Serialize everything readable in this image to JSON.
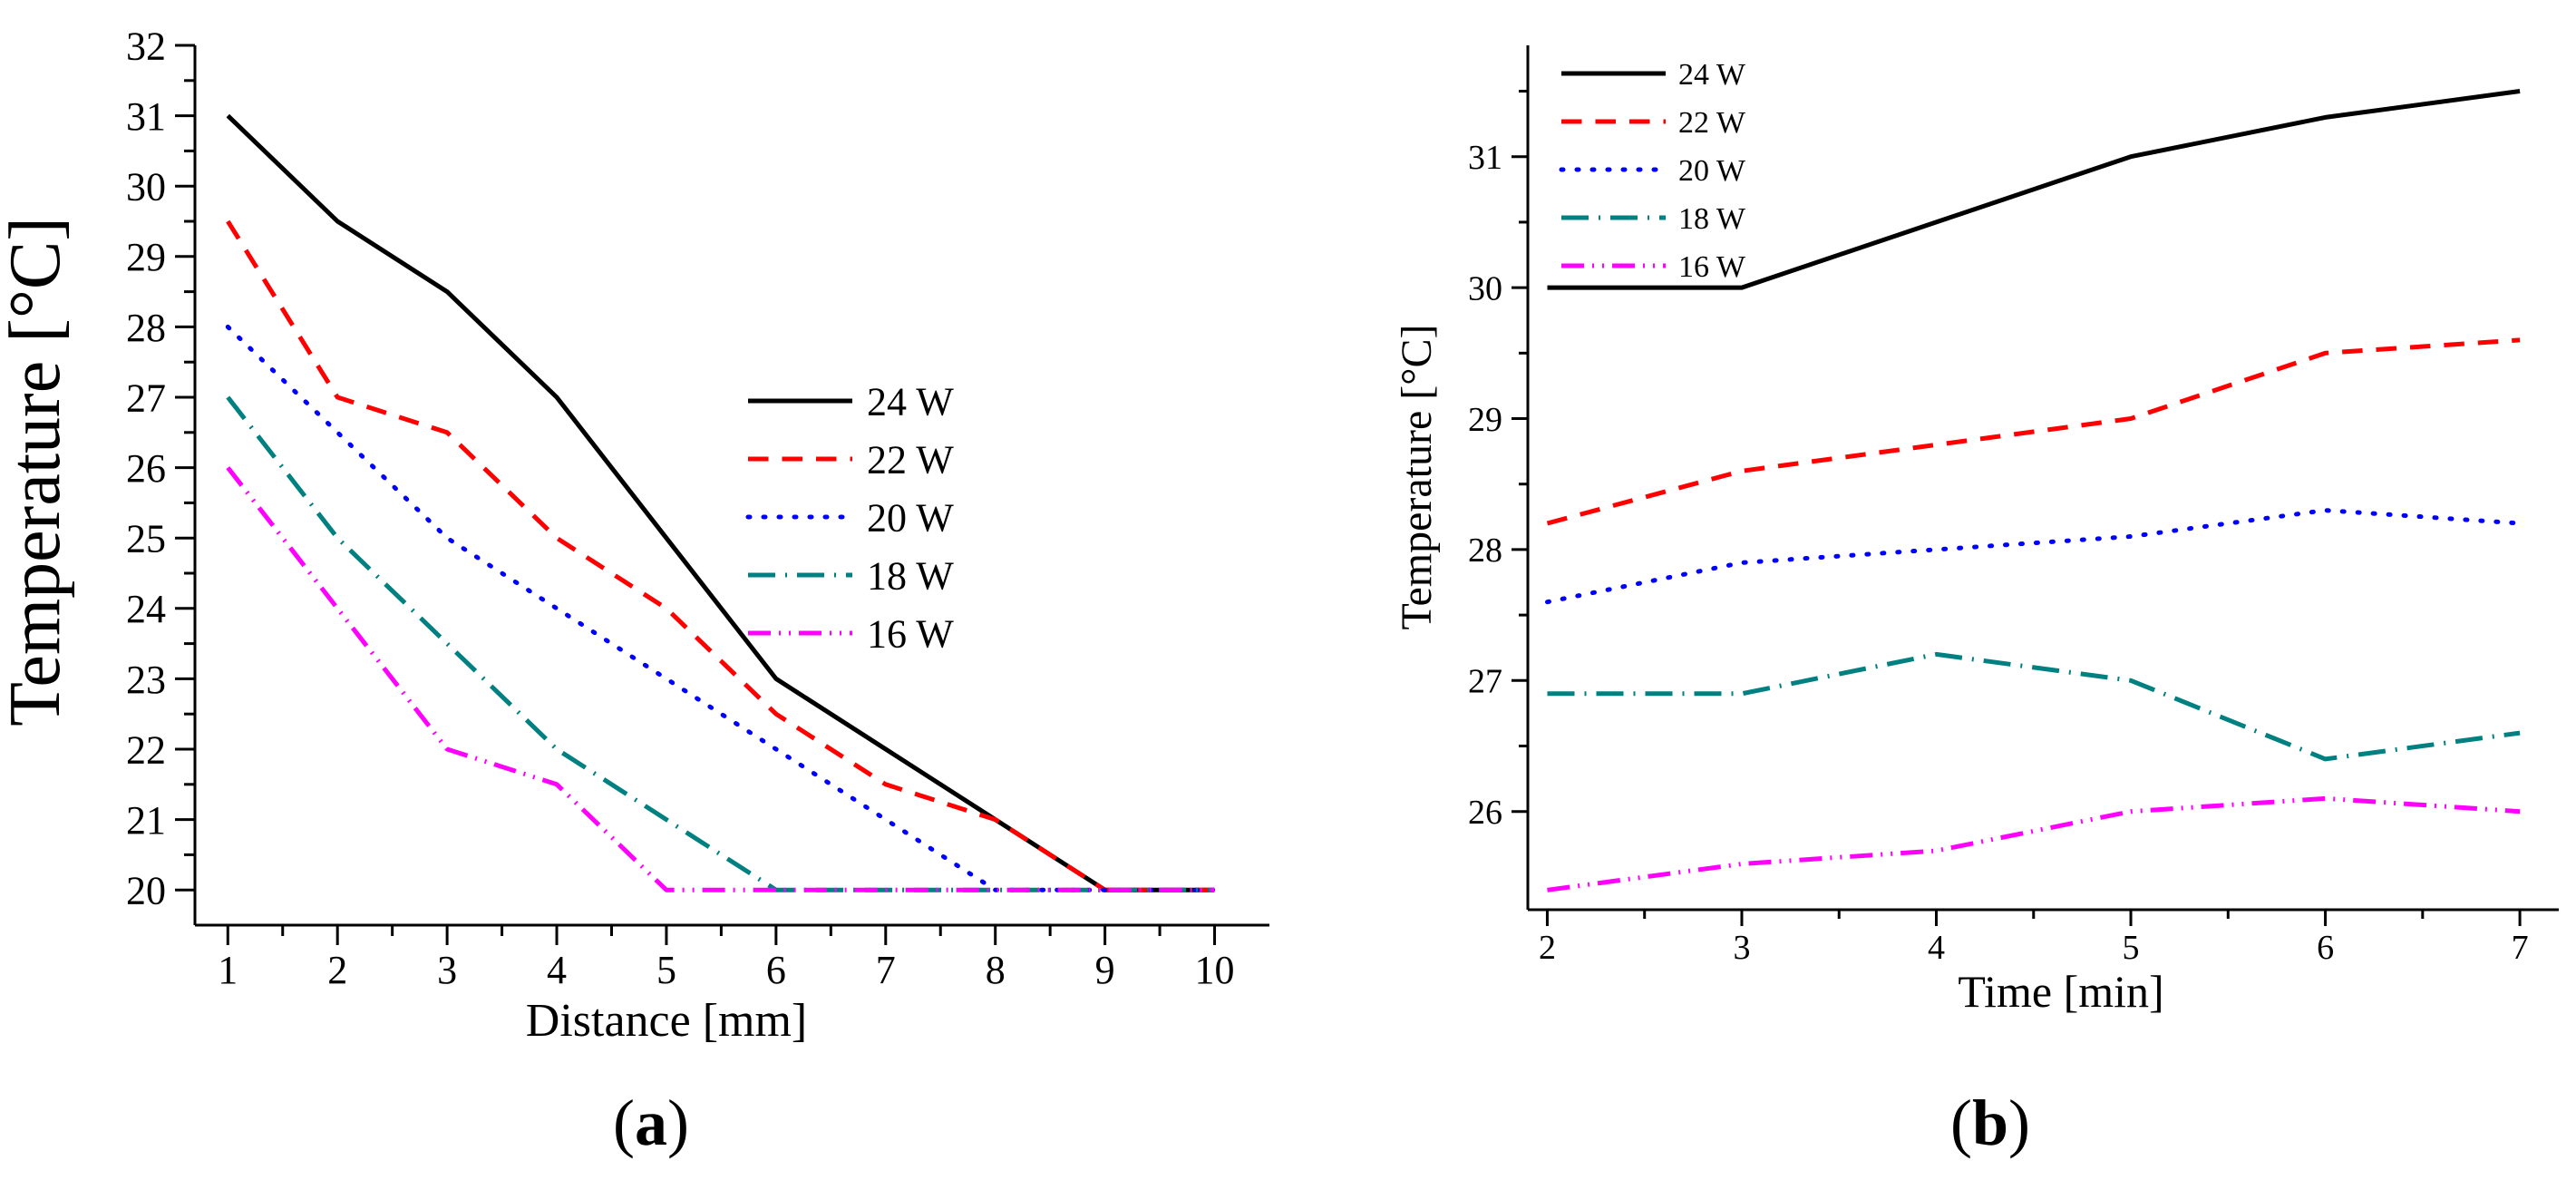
{
  "series_styles": [
    {
      "name": "24 W",
      "color": "#000000",
      "style": "solid"
    },
    {
      "name": "22 W",
      "color": "#ff0000",
      "style": "dashed"
    },
    {
      "name": "20 W",
      "color": "#0000ff",
      "style": "dotted"
    },
    {
      "name": "18 W",
      "color": "#008080",
      "style": "dash-dot"
    },
    {
      "name": "16 W",
      "color": "#ff00ff",
      "style": "dash-dot-dot"
    }
  ],
  "chart_data": [
    {
      "id": "a",
      "type": "line",
      "panel_label": {
        "open": "(",
        "letter": "a",
        "close": ")"
      },
      "title": "",
      "xlabel": "Distance [mm]",
      "ylabel": "Temperature [°C]",
      "xlim": [
        0.7,
        10.5
      ],
      "ylim": [
        19.5,
        32
      ],
      "xticks": [
        1,
        2,
        3,
        4,
        5,
        6,
        7,
        8,
        9,
        10
      ],
      "yticks": [
        20,
        21,
        22,
        23,
        24,
        25,
        26,
        27,
        28,
        29,
        30,
        31,
        32
      ],
      "legend_position": "middle-right",
      "x": [
        1,
        2,
        3,
        4,
        5,
        6,
        7,
        8,
        9,
        10
      ],
      "series": [
        {
          "name": "24 W",
          "values": [
            31,
            29.5,
            28.5,
            27,
            25,
            23,
            22,
            21,
            20,
            20
          ]
        },
        {
          "name": "22 W",
          "values": [
            29.5,
            27,
            26.5,
            25,
            24,
            22.5,
            21.5,
            21,
            20,
            20
          ]
        },
        {
          "name": "20 W",
          "values": [
            28,
            26.5,
            25,
            24,
            23,
            22,
            21,
            20,
            20,
            20
          ]
        },
        {
          "name": "18 W",
          "values": [
            27,
            25,
            23.5,
            22,
            21,
            20,
            20,
            20,
            20,
            20
          ]
        },
        {
          "name": "16 W",
          "values": [
            26,
            24,
            22,
            21.5,
            20,
            20,
            20,
            20,
            20,
            20
          ]
        }
      ]
    },
    {
      "id": "b",
      "type": "line",
      "panel_label": {
        "open": "(",
        "letter": "b",
        "close": ")"
      },
      "title": "",
      "xlabel": "Time [min]",
      "ylabel": "Temperature [°C]",
      "xlim": [
        1.9,
        7.2
      ],
      "ylim": [
        25.25,
        31.85
      ],
      "xticks": [
        2,
        3,
        4,
        5,
        6,
        7
      ],
      "yticks": [
        26,
        27,
        28,
        29,
        30,
        31
      ],
      "legend_position": "top-left",
      "x": [
        2,
        3,
        4,
        5,
        6,
        7
      ],
      "series": [
        {
          "name": "24 W",
          "values": [
            30,
            30,
            30.5,
            31,
            31.3,
            31.5
          ]
        },
        {
          "name": "22 W",
          "values": [
            28.2,
            28.6,
            28.8,
            29,
            29.5,
            29.6
          ]
        },
        {
          "name": "20 W",
          "values": [
            27.6,
            27.9,
            28,
            28.1,
            28.3,
            28.2
          ]
        },
        {
          "name": "18 W",
          "values": [
            26.9,
            26.9,
            27.2,
            27,
            26.4,
            26.6
          ]
        },
        {
          "name": "16 W",
          "values": [
            25.4,
            25.6,
            25.7,
            26,
            26.1,
            26
          ]
        }
      ]
    }
  ]
}
